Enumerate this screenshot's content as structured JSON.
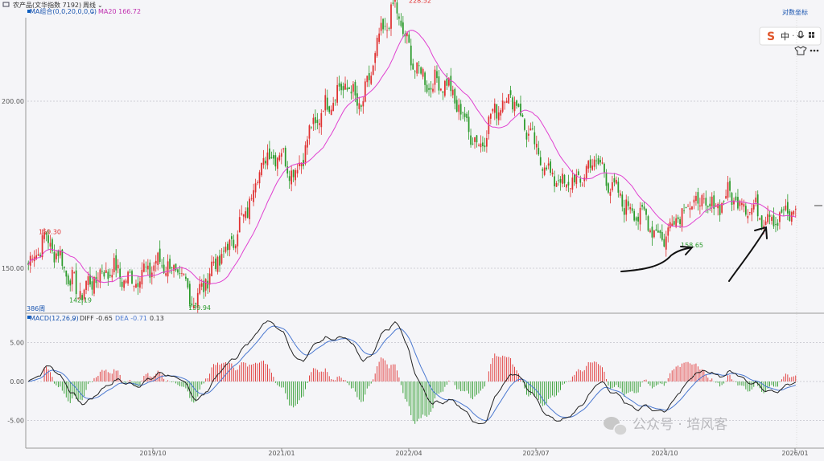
{
  "header": {
    "title": "农产品(文华指数 7192)",
    "period": "周线",
    "ma_label": "MA组合(0,0,20,0,0,0)",
    "ma20_label": "MA20 166.72",
    "right_link": "对数坐标",
    "corner_label": "386周"
  },
  "toolbar": {
    "logo": "S",
    "zh": "中",
    "sep": "·",
    "mic": "mic-icon",
    "grid": "grid-icon",
    "shirt": "shirt-icon",
    "dots": "dots-icon"
  },
  "macd_header": {
    "label": "MACD(12,26,9)",
    "diff": "DIFF -0.65",
    "dea": "DEA -0.71",
    "macd": "0.13"
  },
  "watermark": {
    "text": "公众号 · 培风客"
  },
  "colors": {
    "up": "#e03030",
    "down": "#2a9a2a",
    "ma": "#e040d0",
    "diff": "#222222",
    "dea": "#4a78d0"
  },
  "chart_data": [
    {
      "type": "candlestick",
      "title": "",
      "y_ticks": [
        "200.00",
        "150.00"
      ],
      "y_tick_values": [
        200,
        150
      ],
      "ylim": [
        139,
        230
      ],
      "x_ticks": [
        "2019/10",
        "2021/01",
        "2022/04",
        "2023/07",
        "2024/10",
        "2026/01"
      ],
      "annotations": [
        {
          "text": "159.30",
          "value": 159.3,
          "kind": "high"
        },
        {
          "text": "142.19",
          "value": 142.19,
          "kind": "low"
        },
        {
          "text": "139.94",
          "value": 139.94,
          "kind": "low"
        },
        {
          "text": "228.52",
          "value": 228.52,
          "kind": "high"
        },
        {
          "text": "158.65",
          "value": 158.65,
          "kind": "low"
        }
      ],
      "price_path_approx": [
        151,
        159.3,
        152,
        142.19,
        147,
        150,
        146,
        149,
        152,
        148,
        139.94,
        150,
        156,
        166,
        182,
        185,
        178,
        192,
        200,
        205,
        198,
        218,
        228.52,
        212,
        205,
        206,
        196,
        186,
        198,
        202,
        190,
        180,
        175,
        176,
        183,
        174,
        168,
        165,
        158.65,
        167,
        170,
        168,
        172,
        169,
        166,
        165,
        167.6
      ],
      "ma20_last": 166.72
    },
    {
      "type": "macd",
      "y_ticks": [
        "5.00",
        "0.00",
        "-5.00"
      ],
      "y_tick_values": [
        5,
        0,
        -5
      ],
      "ylim": [
        -8.5,
        7.5
      ],
      "diff_last": -0.65,
      "dea_last": -0.71,
      "macd_last": 0.13
    }
  ]
}
